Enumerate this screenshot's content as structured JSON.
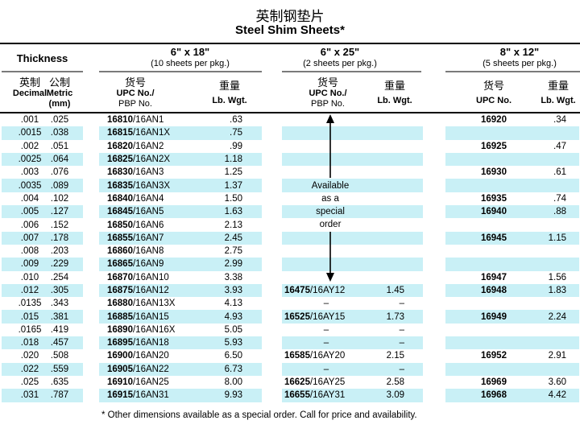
{
  "title": {
    "chinese": "英制钢垫片",
    "english": "Steel Shim Sheets*"
  },
  "thickness": {
    "label": "Thickness",
    "decimal_cn": "英制",
    "decimal_en": "Decimal",
    "metric_cn": "公制",
    "metric_en": "Metric",
    "metric_unit": "(mm)"
  },
  "groups": [
    {
      "size": "6\" x 18\"",
      "pkg": "(10 sheets per pkg.)",
      "upc_cn": "货号",
      "upc_en": "UPC No./",
      "upc_en2": "PBP No.",
      "wgt_cn": "重量",
      "wgt_en": "Lb. Wgt."
    },
    {
      "size": "6\" x 25\"",
      "pkg": "(2 sheets per pkg.)",
      "upc_cn": "货号",
      "upc_en": "UPC No./",
      "upc_en2": "PBP No.",
      "wgt_cn": "重量",
      "wgt_en": "Lb. Wgt."
    },
    {
      "size": "8\" x 12\"",
      "pkg": "(5 sheets per pkg.)",
      "upc_cn": "货号",
      "upc_en": "UPC No.",
      "wgt_cn": "重量",
      "wgt_en": "Lb. Wgt."
    }
  ],
  "special_note": {
    "lines": [
      "Available",
      "as a",
      "special",
      "order"
    ]
  },
  "colors": {
    "row_highlight": "#c9f0f6",
    "rule_gray": "#7a7a7a",
    "line_black": "#000000"
  },
  "rows": [
    {
      "d": ".001",
      "m": ".025",
      "u18": "16810",
      "p18": "16AN1",
      "w18": ".63",
      "u25": "",
      "p25": "",
      "w25": "",
      "u12": "16920",
      "w12": ".34"
    },
    {
      "d": ".0015",
      "m": ".038",
      "u18": "16815",
      "p18": "16AN1X",
      "w18": ".75",
      "u25": "",
      "p25": "",
      "w25": "",
      "u12": "",
      "w12": ""
    },
    {
      "d": ".002",
      "m": ".051",
      "u18": "16820",
      "p18": "16AN2",
      "w18": ".99",
      "u25": "",
      "p25": "",
      "w25": "",
      "u12": "16925",
      "w12": ".47"
    },
    {
      "d": ".0025",
      "m": ".064",
      "u18": "16825",
      "p18": "16AN2X",
      "w18": "1.18",
      "u25": "",
      "p25": "",
      "w25": "",
      "u12": "",
      "w12": ""
    },
    {
      "d": ".003",
      "m": ".076",
      "u18": "16830",
      "p18": "16AN3",
      "w18": "1.25",
      "u25": "",
      "p25": "",
      "w25": "",
      "u12": "16930",
      "w12": ".61"
    },
    {
      "d": ".0035",
      "m": ".089",
      "u18": "16835",
      "p18": "16AN3X",
      "w18": "1.37",
      "u25": "",
      "p25": "",
      "w25": "",
      "u12": "",
      "w12": ""
    },
    {
      "d": ".004",
      "m": ".102",
      "u18": "16840",
      "p18": "16AN4",
      "w18": "1.50",
      "u25": "",
      "p25": "",
      "w25": "",
      "u12": "16935",
      "w12": ".74"
    },
    {
      "d": ".005",
      "m": ".127",
      "u18": "16845",
      "p18": "16AN5",
      "w18": "1.63",
      "u25": "",
      "p25": "",
      "w25": "",
      "u12": "16940",
      "w12": ".88"
    },
    {
      "d": ".006",
      "m": ".152",
      "u18": "16850",
      "p18": "16AN6",
      "w18": "2.13",
      "u25": "",
      "p25": "",
      "w25": "",
      "u12": "",
      "w12": ""
    },
    {
      "d": ".007",
      "m": ".178",
      "u18": "16855",
      "p18": "16AN7",
      "w18": "2.45",
      "u25": "",
      "p25": "",
      "w25": "",
      "u12": "16945",
      "w12": "1.15"
    },
    {
      "d": ".008",
      "m": ".203",
      "u18": "16860",
      "p18": "16AN8",
      "w18": "2.75",
      "u25": "",
      "p25": "",
      "w25": "",
      "u12": "",
      "w12": ""
    },
    {
      "d": ".009",
      "m": ".229",
      "u18": "16865",
      "p18": "16AN9",
      "w18": "2.99",
      "u25": "",
      "p25": "",
      "w25": "",
      "u12": "",
      "w12": ""
    },
    {
      "d": ".010",
      "m": ".254",
      "u18": "16870",
      "p18": "16AN10",
      "w18": "3.38",
      "u25": "",
      "p25": "",
      "w25": "",
      "u12": "16947",
      "w12": "1.56"
    },
    {
      "d": ".012",
      "m": ".305",
      "u18": "16875",
      "p18": "16AN12",
      "w18": "3.93",
      "u25": "16475",
      "p25": "16AY12",
      "w25": "1.45",
      "u12": "16948",
      "w12": "1.83"
    },
    {
      "d": ".0135",
      "m": ".343",
      "u18": "16880",
      "p18": "16AN13X",
      "w18": "4.13",
      "u25": "–",
      "p25": "",
      "w25": "–",
      "u12": "",
      "w12": ""
    },
    {
      "d": ".015",
      "m": ".381",
      "u18": "16885",
      "p18": "16AN15",
      "w18": "4.93",
      "u25": "16525",
      "p25": "16AY15",
      "w25": "1.73",
      "u12": "16949",
      "w12": "2.24"
    },
    {
      "d": ".0165",
      "m": ".419",
      "u18": "16890",
      "p18": "16AN16X",
      "w18": "5.05",
      "u25": "–",
      "p25": "",
      "w25": "–",
      "u12": "",
      "w12": ""
    },
    {
      "d": ".018",
      "m": ".457",
      "u18": "16895",
      "p18": "16AN18",
      "w18": "5.93",
      "u25": "–",
      "p25": "",
      "w25": "–",
      "u12": "",
      "w12": ""
    },
    {
      "d": ".020",
      "m": ".508",
      "u18": "16900",
      "p18": "16AN20",
      "w18": "6.50",
      "u25": "16585",
      "p25": "16AY20",
      "w25": "2.15",
      "u12": "16952",
      "w12": "2.91"
    },
    {
      "d": ".022",
      "m": ".559",
      "u18": "16905",
      "p18": "16AN22",
      "w18": "6.73",
      "u25": "–",
      "p25": "",
      "w25": "–",
      "u12": "",
      "w12": ""
    },
    {
      "d": ".025",
      "m": ".635",
      "u18": "16910",
      "p18": "16AN25",
      "w18": "8.00",
      "u25": "16625",
      "p25": "16AY25",
      "w25": "2.58",
      "u12": "16969",
      "w12": "3.60"
    },
    {
      "d": ".031",
      "m": ".787",
      "u18": "16915",
      "p18": "16AN31",
      "w18": "9.93",
      "u25": "16655",
      "p25": "16AY31",
      "w25": "3.09",
      "u12": "16968",
      "w12": "4.42"
    }
  ],
  "footnote": "* Other dimensions available as a special order. Call for price and availability."
}
